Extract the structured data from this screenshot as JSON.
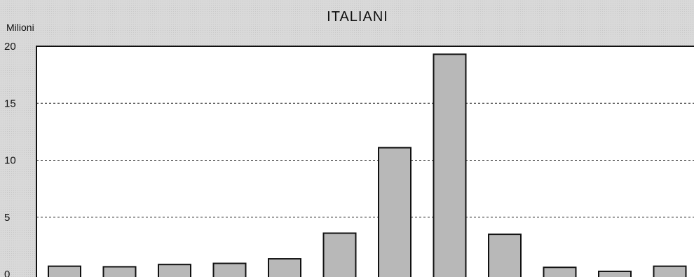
{
  "chart_data": {
    "type": "bar",
    "title": "ITALIANI",
    "ylabel": "Milioni",
    "xlabel": "",
    "ylim": [
      0,
      20
    ],
    "yticks": [
      "0",
      "5",
      "10",
      "15",
      "20"
    ],
    "grid": true,
    "categories": [
      "",
      "",
      "",
      "",
      "",
      "",
      "",
      "",
      "",
      "",
      "",
      ""
    ],
    "values": [
      0.7,
      0.65,
      0.85,
      0.95,
      1.35,
      3.6,
      11.1,
      19.3,
      3.5,
      0.6,
      0.25,
      0.7
    ],
    "bar_color": "#b8b8b8",
    "bar_edge_color": "#111111"
  }
}
